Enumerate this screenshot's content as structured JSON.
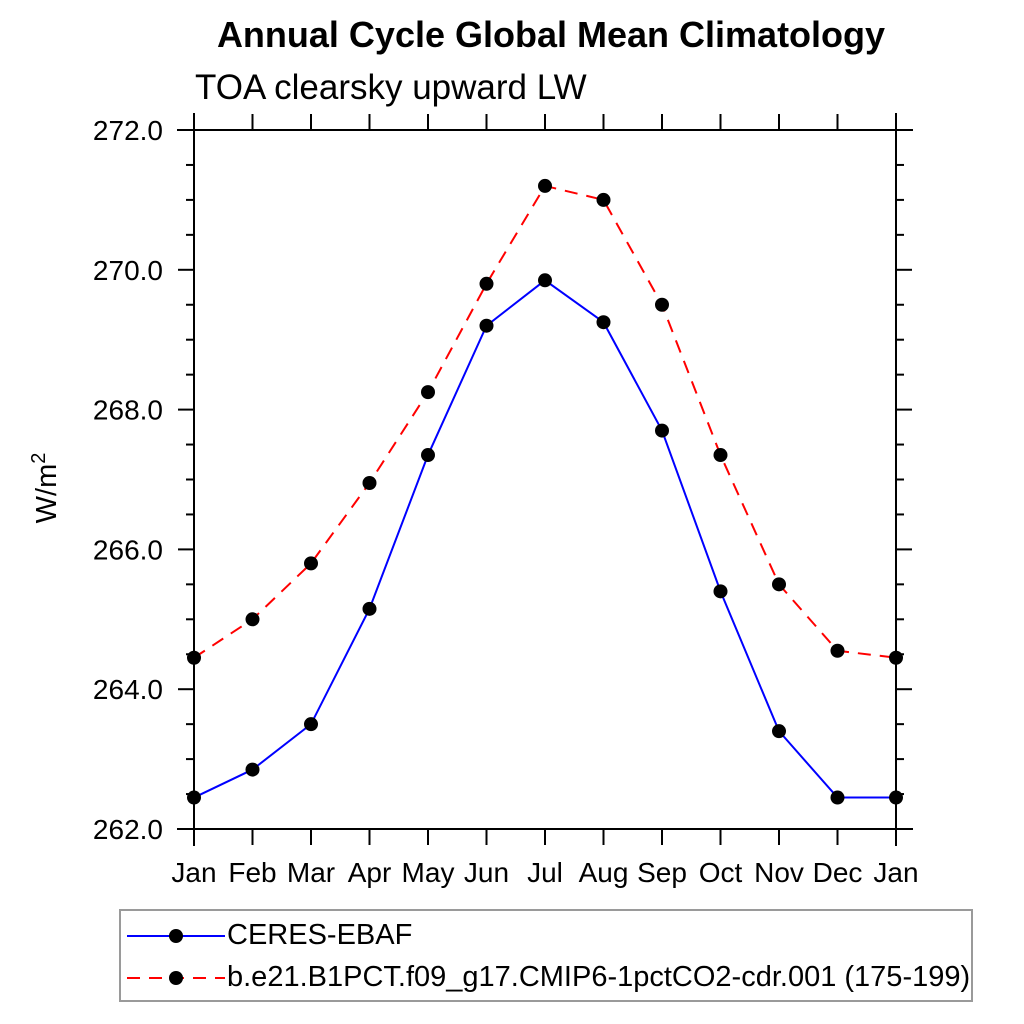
{
  "chart": {
    "y_axis_title_base": "W/m",
    "y_axis_title_exponent": "2"
  },
  "chart_data": {
    "type": "line",
    "title": "Annual Cycle Global Mean Climatology",
    "subtitle": "TOA clearsky upward LW",
    "ylabel": "W/m²",
    "xlabel": "",
    "categories": [
      "Jan",
      "Feb",
      "Mar",
      "Apr",
      "May",
      "Jun",
      "Jul",
      "Aug",
      "Sep",
      "Oct",
      "Nov",
      "Dec",
      "Jan"
    ],
    "series": [
      {
        "name": "CERES-EBAF",
        "color": "#0000ff",
        "line_style": "solid",
        "marker": "filled-circle",
        "marker_color": "#000000",
        "values": [
          262.45,
          262.85,
          263.5,
          265.15,
          267.35,
          269.2,
          269.85,
          269.25,
          267.7,
          265.4,
          263.4,
          262.45,
          262.45
        ]
      },
      {
        "name": "b.e21.B1PCT.f09_g17.CMIP6-1pctCO2-cdr.001 (175-199)",
        "color": "#ff0000",
        "line_style": "dashed",
        "marker": "filled-circle",
        "marker_color": "#000000",
        "values": [
          264.45,
          265.0,
          265.8,
          266.95,
          268.25,
          269.8,
          271.2,
          271.0,
          269.5,
          267.35,
          265.5,
          264.55,
          264.45
        ]
      }
    ],
    "ylim": [
      262.0,
      272.0
    ],
    "y_major_step": 2.0,
    "y_minor_step": 0.5,
    "y_tick_labels": [
      "262.0",
      "264.0",
      "266.0",
      "268.0",
      "270.0",
      "272.0"
    ],
    "grid": false,
    "frame": "box-with-outward-ticks",
    "legend_position": "bottom-left-box",
    "axis_color": "#000000",
    "legend_border_color": "#9a9a9a"
  }
}
